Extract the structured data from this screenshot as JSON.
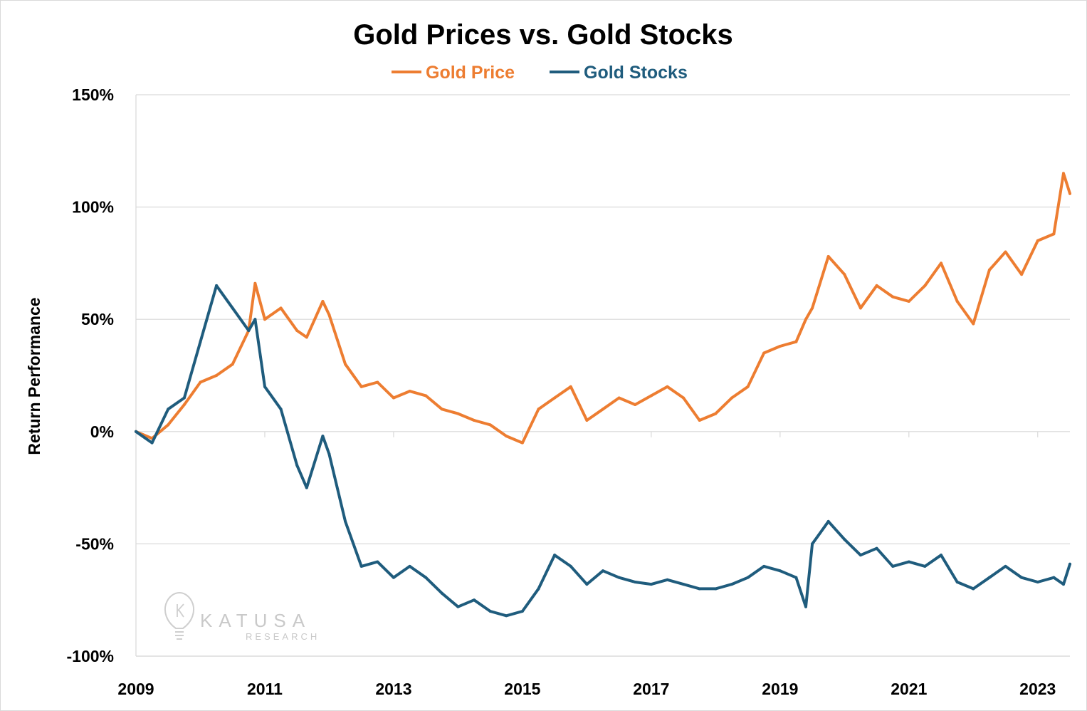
{
  "chart_data": {
    "type": "line",
    "title": "Gold Prices vs.  Gold Stocks",
    "xlabel": "",
    "ylabel": "Return Performance",
    "x_ticks": [
      "2009",
      "2011",
      "2013",
      "2015",
      "2017",
      "2019",
      "2021",
      "2023"
    ],
    "x_range": [
      2009.0,
      2023.5
    ],
    "y_ticks": [
      "150%",
      "100%",
      "50%",
      "0%",
      "-50%",
      "-100%"
    ],
    "y_tick_values": [
      150,
      100,
      50,
      0,
      -50,
      -100
    ],
    "ylim": [
      -100,
      150
    ],
    "grid": "horizontal",
    "legend_position": "top-center",
    "x": [
      2009.0,
      2009.25,
      2009.5,
      2009.75,
      2010.0,
      2010.25,
      2010.5,
      2010.75,
      2010.85,
      2011.0,
      2011.25,
      2011.5,
      2011.65,
      2011.9,
      2012.0,
      2012.25,
      2012.5,
      2012.75,
      2013.0,
      2013.25,
      2013.5,
      2013.75,
      2014.0,
      2014.25,
      2014.5,
      2014.75,
      2015.0,
      2015.25,
      2015.5,
      2015.75,
      2016.0,
      2016.25,
      2016.5,
      2016.75,
      2017.0,
      2017.25,
      2017.5,
      2017.75,
      2018.0,
      2018.25,
      2018.5,
      2018.75,
      2019.0,
      2019.25,
      2019.4,
      2019.5,
      2019.75,
      2020.0,
      2020.25,
      2020.5,
      2020.75,
      2021.0,
      2021.25,
      2021.5,
      2021.75,
      2022.0,
      2022.25,
      2022.5,
      2022.75,
      2023.0,
      2023.25,
      2023.4,
      2023.5
    ],
    "series": [
      {
        "name": "Gold Price",
        "color": "#ED7D31",
        "values": [
          0,
          -3,
          3,
          12,
          22,
          25,
          30,
          45,
          66,
          50,
          55,
          45,
          42,
          58,
          52,
          30,
          20,
          22,
          15,
          18,
          16,
          10,
          8,
          5,
          3,
          -2,
          -5,
          10,
          15,
          20,
          5,
          10,
          15,
          12,
          16,
          20,
          15,
          5,
          8,
          15,
          20,
          35,
          38,
          40,
          50,
          55,
          78,
          70,
          55,
          65,
          60,
          58,
          65,
          75,
          58,
          48,
          72,
          80,
          70,
          85,
          88,
          115,
          106
        ]
      },
      {
        "name": "Gold Stocks",
        "color": "#1F5C7D",
        "values": [
          0,
          -5,
          10,
          15,
          40,
          65,
          55,
          45,
          50,
          20,
          10,
          -15,
          -25,
          -2,
          -10,
          -40,
          -60,
          -58,
          -65,
          -60,
          -65,
          -72,
          -78,
          -75,
          -80,
          -82,
          -80,
          -70,
          -55,
          -60,
          -68,
          -62,
          -65,
          -67,
          -68,
          -66,
          -68,
          -70,
          -70,
          -68,
          -65,
          -60,
          -62,
          -65,
          -78,
          -50,
          -40,
          -48,
          -55,
          -52,
          -60,
          -58,
          -60,
          -55,
          -67,
          -70,
          -65,
          -60,
          -65,
          -67,
          -65,
          -68,
          -59
        ]
      }
    ]
  },
  "watermark": {
    "name": "KATUSA",
    "sub": "RESEARCH",
    "icon": "lightbulb-icon"
  }
}
